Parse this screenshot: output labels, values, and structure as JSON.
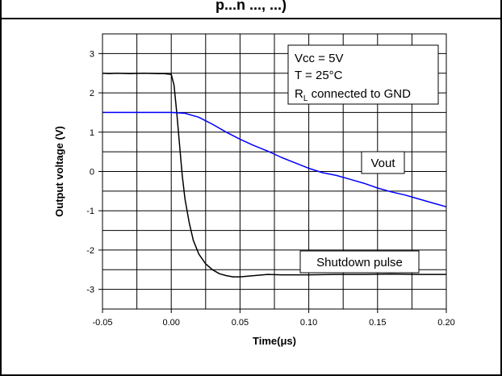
{
  "header": {
    "title_fragment": "p...n ..., ...)"
  },
  "chart_data": {
    "type": "line",
    "title": "",
    "xlabel": "Time(μs)",
    "ylabel": "Output voltage (V)",
    "xlim": [
      -0.05,
      0.2
    ],
    "ylim": [
      -3.5,
      3.5
    ],
    "x_ticks": [
      "-0.05",
      "0.00",
      "0.05",
      "0.10",
      "0.15",
      "0.20"
    ],
    "y_ticks": [
      "3",
      "2",
      "1",
      "0",
      "-1",
      "-2",
      "-3"
    ],
    "grid": true,
    "series": [
      {
        "name": "Shutdown pulse",
        "color": "#000000",
        "points": [
          [
            -0.05,
            2.5
          ],
          [
            -0.045,
            2.49
          ],
          [
            -0.04,
            2.5
          ],
          [
            -0.03,
            2.49
          ],
          [
            -0.02,
            2.5
          ],
          [
            -0.01,
            2.49
          ],
          [
            -0.005,
            2.49
          ],
          [
            0.0,
            2.47
          ],
          [
            0.002,
            2.2
          ],
          [
            0.004,
            1.5
          ],
          [
            0.006,
            0.7
          ],
          [
            0.008,
            -0.1
          ],
          [
            0.01,
            -0.7
          ],
          [
            0.013,
            -1.3
          ],
          [
            0.016,
            -1.75
          ],
          [
            0.02,
            -2.1
          ],
          [
            0.025,
            -2.35
          ],
          [
            0.03,
            -2.5
          ],
          [
            0.035,
            -2.6
          ],
          [
            0.04,
            -2.65
          ],
          [
            0.045,
            -2.68
          ],
          [
            0.05,
            -2.68
          ],
          [
            0.06,
            -2.65
          ],
          [
            0.07,
            -2.62
          ],
          [
            0.08,
            -2.63
          ],
          [
            0.1,
            -2.63
          ],
          [
            0.12,
            -2.62
          ],
          [
            0.14,
            -2.62
          ],
          [
            0.16,
            -2.61
          ],
          [
            0.18,
            -2.62
          ],
          [
            0.2,
            -2.62
          ]
        ]
      },
      {
        "name": "Vout",
        "color": "#0000ff",
        "points": [
          [
            -0.05,
            1.5
          ],
          [
            -0.04,
            1.5
          ],
          [
            -0.02,
            1.5
          ],
          [
            0.0,
            1.5
          ],
          [
            0.01,
            1.48
          ],
          [
            0.02,
            1.38
          ],
          [
            0.03,
            1.2
          ],
          [
            0.04,
            1.0
          ],
          [
            0.05,
            0.82
          ],
          [
            0.06,
            0.66
          ],
          [
            0.07,
            0.52
          ],
          [
            0.08,
            0.36
          ],
          [
            0.09,
            0.22
          ],
          [
            0.1,
            0.08
          ],
          [
            0.11,
            -0.03
          ],
          [
            0.12,
            -0.1
          ],
          [
            0.13,
            -0.2
          ],
          [
            0.14,
            -0.3
          ],
          [
            0.15,
            -0.42
          ],
          [
            0.16,
            -0.52
          ],
          [
            0.17,
            -0.6
          ],
          [
            0.18,
            -0.7
          ],
          [
            0.19,
            -0.8
          ],
          [
            0.2,
            -0.9
          ]
        ]
      }
    ],
    "annotations": {
      "conditions": [
        "Vcc = 5V",
        "T = 25°C",
        "connected to GND"
      ],
      "rl_main": "R",
      "rl_sub": "L",
      "vout_label": "Vout",
      "shutdown_label": "Shutdown pulse"
    }
  }
}
